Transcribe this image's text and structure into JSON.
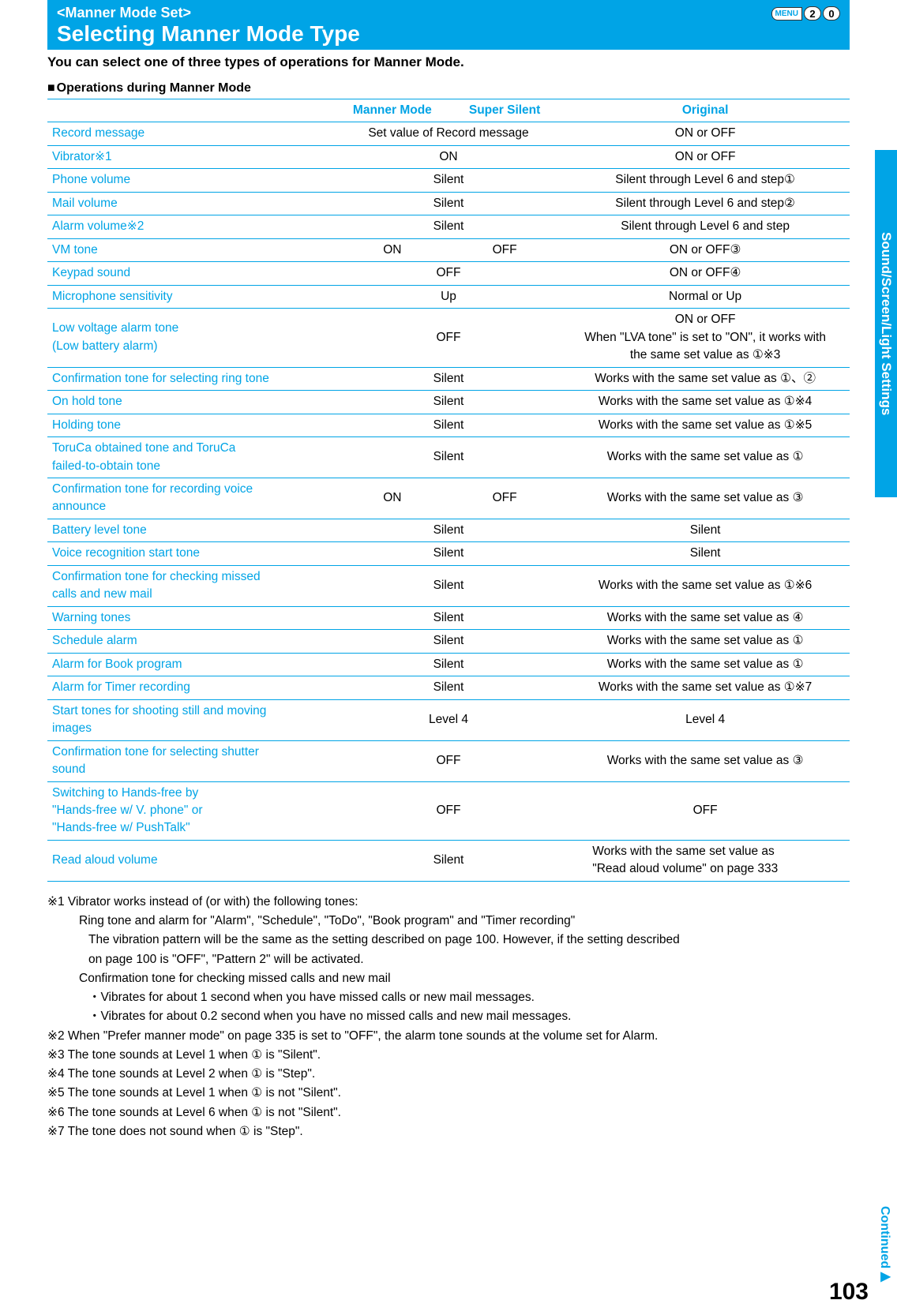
{
  "header": {
    "subtitle": "<Manner Mode Set>",
    "title": "Selecting Manner Mode Type",
    "menu_label": "MENU",
    "menu_keys": [
      "2",
      "0"
    ]
  },
  "intro": "You can select one of three types of operations for Manner Mode.",
  "section_heading": "Operations during Manner Mode",
  "table": {
    "headers": [
      "",
      "Manner Mode",
      "Super Silent",
      "Original"
    ],
    "rows": [
      {
        "label": "Record message",
        "c12": "Set value of Record message",
        "c3": "ON or OFF"
      },
      {
        "label": "Vibrator※1",
        "c12": "ON",
        "c3": "ON or OFF"
      },
      {
        "label": "Phone volume",
        "c12": "Silent",
        "c3": "Silent through Level 6 and step①"
      },
      {
        "label": "Mail volume",
        "c12": "Silent",
        "c3": "Silent through Level 6 and step②"
      },
      {
        "label": "Alarm volume※2",
        "c12": "Silent",
        "c3": "Silent through Level 6 and step"
      },
      {
        "label": "VM tone",
        "c1": "ON",
        "c2": "OFF",
        "c3": "ON or OFF③"
      },
      {
        "label": "Keypad sound",
        "c12": "OFF",
        "c3": "ON or OFF④"
      },
      {
        "label": "Microphone sensitivity",
        "c12": "Up",
        "c3": "Normal or Up"
      },
      {
        "label": "Low voltage alarm tone\n(Low battery alarm)",
        "c12": "OFF",
        "c3": "ON or OFF\nWhen \"LVA tone\" is set to \"ON\", it works with\nthe same set value as ①※3"
      },
      {
        "label": "Confirmation tone for selecting ring tone",
        "c12": "Silent",
        "c3": "Works with the same set value as ①、②"
      },
      {
        "label": "On hold tone",
        "c12": "Silent",
        "c3": "Works with the same set value as ①※4"
      },
      {
        "label": "Holding tone",
        "c12": "Silent",
        "c3": "Works with the same set value as ①※5"
      },
      {
        "label": "ToruCa obtained tone and ToruCa\nfailed-to-obtain tone",
        "c12": "Silent",
        "c3": "Works with the same set value as ①"
      },
      {
        "label": "Confirmation tone for recording voice\nannounce",
        "c1": "ON",
        "c2": "OFF",
        "c3": "Works with the same set value as ③"
      },
      {
        "label": "Battery level tone",
        "c12": "Silent",
        "c3": "Silent"
      },
      {
        "label": "Voice recognition start tone",
        "c12": "Silent",
        "c3": "Silent"
      },
      {
        "label": "Confirmation tone for checking missed\ncalls and new mail",
        "c12": "Silent",
        "c3": "Works with the same set value as ①※6"
      },
      {
        "label": "Warning tones",
        "c12": "Silent",
        "c3": "Works with the same set value as ④"
      },
      {
        "label": "Schedule alarm",
        "c12": "Silent",
        "c3": "Works with the same set value as ①"
      },
      {
        "label": "Alarm for Book program",
        "c12": "Silent",
        "c3": "Works with the same set value as ①"
      },
      {
        "label": "Alarm for Timer recording",
        "c12": "Silent",
        "c3": "Works with the same set value as ①※7"
      },
      {
        "label": "Start tones for shooting still and moving\nimages",
        "c12": "Level 4",
        "c3": "Level 4"
      },
      {
        "label": "Confirmation tone for selecting shutter\nsound",
        "c12": "OFF",
        "c3": "Works with the same set value as ③"
      },
      {
        "label": "Switching to Hands-free by\n\"Hands-free w/ V. phone\" or\n\"Hands-free w/ PushTalk\"",
        "c12": "OFF",
        "c3": "OFF"
      },
      {
        "label": "Read aloud volume",
        "c12": "Silent",
        "c3_left": "Works with the same set value as\n\"Read aloud volume\" on page 333"
      }
    ]
  },
  "notes": [
    {
      "text": "※1 Vibrator works instead of (or with) the following tones:"
    },
    {
      "text": "Ring tone and alarm for \"Alarm\", \"Schedule\", \"ToDo\", \"Book program\" and \"Timer recording\"",
      "indent": 1
    },
    {
      "text": "The vibration pattern will be the same as the setting described on page 100. However, if the setting described",
      "indent": 2
    },
    {
      "text": "on page 100 is \"OFF\", \"Pattern 2\" will be activated.",
      "indent": 2
    },
    {
      "text": "Confirmation tone for checking missed calls and new mail",
      "indent": 1
    },
    {
      "text": "・Vibrates for about 1 second when you have missed calls or new mail messages.",
      "indent": 2
    },
    {
      "text": "・Vibrates for about 0.2 second when you have no missed calls and new mail messages.",
      "indent": 2
    },
    {
      "text": "※2 When \"Prefer manner mode\" on page 335 is set to \"OFF\", the alarm tone sounds at the volume set for Alarm."
    },
    {
      "text": "※3 The tone sounds at Level 1 when ① is \"Silent\"."
    },
    {
      "text": "※4 The tone sounds at Level 2 when ① is \"Step\"."
    },
    {
      "text": "※5 The tone sounds at Level 1 when ① is not \"Silent\"."
    },
    {
      "text": "※6 The tone sounds at Level 6 when ① is not \"Silent\"."
    },
    {
      "text": "※7 The tone does not sound when ① is \"Step\"."
    }
  ],
  "side_tab": "Sound/Screen/Light Settings",
  "continued": "Continued▶",
  "page_number": "103"
}
